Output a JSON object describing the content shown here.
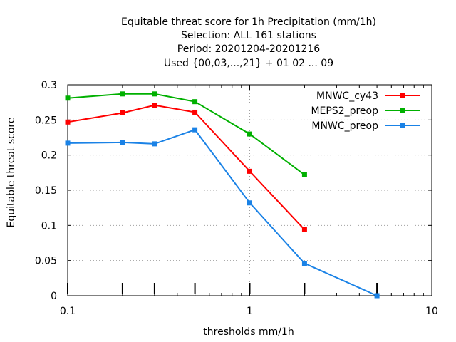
{
  "chart_data": {
    "type": "line",
    "title_lines": [
      "Equitable threat score  for 1h Precipitation (mm/1h)",
      "Selection: ALL    161 stations",
      "Period: 20201204-20201216",
      "Used {00,03,...,21} + 01 02 ... 09"
    ],
    "xlabel": "thresholds mm/1h",
    "ylabel": "Equitable threat score",
    "xscale": "log",
    "xlim": [
      0.1,
      10
    ],
    "ylim": [
      0,
      0.3
    ],
    "xticks": [
      0.1,
      1,
      10
    ],
    "xtick_labels": [
      "0.1",
      "1",
      "10"
    ],
    "yticks": [
      0,
      0.05,
      0.1,
      0.15,
      0.2,
      0.25,
      0.3
    ],
    "ytick_labels": [
      "0",
      "0.05",
      "0.1",
      "0.15",
      "0.2",
      "0.25",
      "0.3"
    ],
    "grid": true,
    "legend_position": "top-right",
    "threshold_markers": [
      0.1,
      0.2,
      0.3,
      0.5,
      1,
      2,
      5
    ],
    "series": [
      {
        "name": "MNWC_cy43",
        "color": "#ff0000",
        "x": [
          0.1,
          0.2,
          0.3,
          0.5,
          1,
          2
        ],
        "y": [
          0.247,
          0.26,
          0.271,
          0.261,
          0.177,
          0.094
        ]
      },
      {
        "name": "MEPS2_preop",
        "color": "#00b000",
        "x": [
          0.1,
          0.2,
          0.3,
          0.5,
          1,
          2
        ],
        "y": [
          0.281,
          0.287,
          0.287,
          0.276,
          0.23,
          0.172
        ]
      },
      {
        "name": "MNWC_preop",
        "color": "#1a82e6",
        "x": [
          0.1,
          0.2,
          0.3,
          0.5,
          1,
          2,
          5
        ],
        "y": [
          0.217,
          0.218,
          0.216,
          0.236,
          0.132,
          0.046,
          0.0
        ]
      }
    ]
  }
}
